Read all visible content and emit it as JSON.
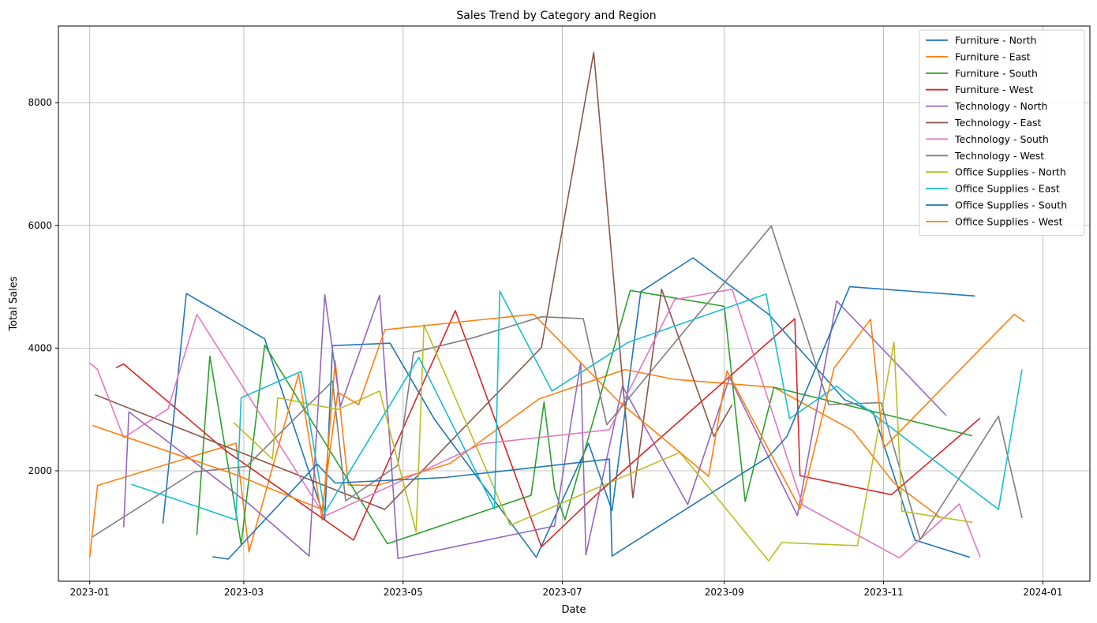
{
  "chart_data": {
    "type": "line",
    "title": "Sales Trend by Category and Region",
    "xlabel": "Date",
    "ylabel": "Total Sales",
    "xlim": [
      "2022-12-20",
      "2024-01-19"
    ],
    "ylim": [
      200,
      9250
    ],
    "x_ticks": [
      "2023-01",
      "2023-03",
      "2023-05",
      "2023-07",
      "2023-09",
      "2023-11",
      "2024-01"
    ],
    "y_ticks": [
      2000,
      4000,
      6000,
      8000
    ],
    "grid": true,
    "legend_position": "top-right",
    "series": [
      {
        "name": "Furniture - North",
        "color": "#1f77b4",
        "points": [
          [
            "2023-01-29",
            1140
          ],
          [
            "2023-02-07",
            4890
          ],
          [
            "2023-03-09",
            4150
          ],
          [
            "2023-04-01",
            1210
          ],
          [
            "2023-04-04",
            4040
          ],
          [
            "2023-04-26",
            4080
          ],
          [
            "2023-05-13",
            2840
          ],
          [
            "2023-06-21",
            590
          ],
          [
            "2023-07-11",
            2450
          ],
          [
            "2023-07-20",
            1350
          ],
          [
            "2023-07-31",
            4920
          ],
          [
            "2023-08-20",
            5470
          ],
          [
            "2023-09-18",
            4550
          ],
          [
            "2023-10-17",
            3160
          ],
          [
            "2023-10-28",
            2960
          ],
          [
            "2023-11-13",
            870
          ],
          [
            "2023-12-04",
            590
          ]
        ]
      },
      {
        "name": "Furniture - East",
        "color": "#ff7f0e",
        "points": [
          [
            "2023-01-01",
            590
          ],
          [
            "2023-01-04",
            1760
          ],
          [
            "2023-02-26",
            2450
          ],
          [
            "2023-03-03",
            680
          ],
          [
            "2023-03-22",
            3580
          ],
          [
            "2023-03-31",
            1200
          ],
          [
            "2023-04-05",
            3790
          ],
          [
            "2023-04-10",
            1770
          ],
          [
            "2023-04-21",
            1760
          ],
          [
            "2023-05-19",
            2120
          ],
          [
            "2023-06-22",
            3170
          ],
          [
            "2023-07-25",
            3650
          ],
          [
            "2023-08-13",
            3490
          ],
          [
            "2023-09-20",
            3360
          ],
          [
            "2023-10-20",
            2660
          ],
          [
            "2023-11-05",
            1800
          ],
          [
            "2023-11-23",
            1230
          ]
        ]
      },
      {
        "name": "Furniture - South",
        "color": "#2ca02c",
        "points": [
          [
            "2023-02-11",
            950
          ],
          [
            "2023-02-16",
            3870
          ],
          [
            "2023-02-28",
            800
          ],
          [
            "2023-03-09",
            4050
          ],
          [
            "2023-04-25",
            810
          ],
          [
            "2023-06-19",
            1600
          ],
          [
            "2023-06-24",
            3120
          ],
          [
            "2023-06-28",
            1700
          ],
          [
            "2023-07-02",
            1200
          ],
          [
            "2023-07-27",
            4940
          ],
          [
            "2023-09-01",
            4680
          ],
          [
            "2023-09-09",
            1500
          ],
          [
            "2023-09-20",
            3360
          ],
          [
            "2023-12-05",
            2570
          ]
        ]
      },
      {
        "name": "Furniture - West",
        "color": "#d62728",
        "points": [
          [
            "2023-01-11",
            3680
          ],
          [
            "2023-01-14",
            3740
          ],
          [
            "2023-02-22",
            2330
          ],
          [
            "2023-04-12",
            870
          ],
          [
            "2023-05-21",
            4610
          ],
          [
            "2023-06-23",
            760
          ],
          [
            "2023-07-14",
            1610
          ],
          [
            "2023-09-28",
            4480
          ],
          [
            "2023-09-30",
            1920
          ],
          [
            "2023-11-04",
            1610
          ],
          [
            "2023-12-08",
            2860
          ]
        ]
      },
      {
        "name": "Technology - North",
        "color": "#9467bd",
        "points": [
          [
            "2023-01-14",
            1080
          ],
          [
            "2023-01-16",
            2960
          ],
          [
            "2023-03-03",
            1460
          ],
          [
            "2023-03-26",
            610
          ],
          [
            "2023-04-01",
            4870
          ],
          [
            "2023-04-07",
            3050
          ],
          [
            "2023-04-22",
            4860
          ],
          [
            "2023-04-29",
            570
          ],
          [
            "2023-06-28",
            1100
          ],
          [
            "2023-07-08",
            3770
          ],
          [
            "2023-07-10",
            630
          ],
          [
            "2023-07-24",
            3380
          ],
          [
            "2023-08-18",
            1450
          ],
          [
            "2023-09-03",
            3520
          ],
          [
            "2023-09-29",
            1270
          ],
          [
            "2023-10-14",
            4770
          ],
          [
            "2023-11-25",
            2900
          ]
        ]
      },
      {
        "name": "Technology - East",
        "color": "#8c564b",
        "points": [
          [
            "2023-01-03",
            3240
          ],
          [
            "2023-04-24",
            1370
          ],
          [
            "2023-06-23",
            4010
          ],
          [
            "2023-07-13",
            8820
          ],
          [
            "2023-07-28",
            1560
          ],
          [
            "2023-08-08",
            4960
          ],
          [
            "2023-08-28",
            2560
          ],
          [
            "2023-09-04",
            3080
          ]
        ]
      },
      {
        "name": "Technology - South",
        "color": "#e377c2",
        "points": [
          [
            "2023-01-01",
            3760
          ],
          [
            "2023-01-04",
            3650
          ],
          [
            "2023-01-14",
            2540
          ],
          [
            "2023-01-31",
            3010
          ],
          [
            "2023-02-11",
            4550
          ],
          [
            "2023-04-01",
            1260
          ],
          [
            "2023-05-31",
            2440
          ],
          [
            "2023-07-19",
            2670
          ],
          [
            "2023-08-13",
            4790
          ],
          [
            "2023-09-04",
            4960
          ],
          [
            "2023-10-01",
            1440
          ],
          [
            "2023-11-07",
            580
          ],
          [
            "2023-11-30",
            1460
          ],
          [
            "2023-12-08",
            590
          ]
        ]
      },
      {
        "name": "Technology - West",
        "color": "#7f7f7f",
        "points": [
          [
            "2023-01-02",
            920
          ],
          [
            "2023-02-10",
            1980
          ],
          [
            "2023-03-02",
            2070
          ],
          [
            "2023-04-04",
            3460
          ],
          [
            "2023-04-09",
            1510
          ],
          [
            "2023-04-29",
            2090
          ],
          [
            "2023-05-05",
            3930
          ],
          [
            "2023-05-28",
            4170
          ],
          [
            "2023-06-23",
            4510
          ],
          [
            "2023-07-09",
            4480
          ],
          [
            "2023-07-18",
            2750
          ],
          [
            "2023-09-19",
            5990
          ],
          [
            "2023-10-11",
            3080
          ],
          [
            "2023-10-31",
            3110
          ],
          [
            "2023-11-15",
            880
          ],
          [
            "2023-12-15",
            2890
          ],
          [
            "2023-12-24",
            1230
          ]
        ]
      },
      {
        "name": "Office Supplies - North",
        "color": "#bcbd22",
        "points": [
          [
            "2023-02-25",
            2790
          ],
          [
            "2023-03-12",
            2190
          ],
          [
            "2023-03-14",
            3190
          ],
          [
            "2023-04-06",
            3000
          ],
          [
            "2023-04-22",
            3300
          ],
          [
            "2023-05-06",
            1000
          ],
          [
            "2023-05-09",
            4380
          ],
          [
            "2023-06-11",
            1110
          ],
          [
            "2023-08-15",
            2300
          ],
          [
            "2023-09-18",
            530
          ],
          [
            "2023-09-23",
            830
          ],
          [
            "2023-10-22",
            780
          ],
          [
            "2023-11-05",
            4100
          ],
          [
            "2023-11-08",
            1340
          ],
          [
            "2023-12-05",
            1160
          ]
        ]
      },
      {
        "name": "Office Supplies - East",
        "color": "#17becf",
        "points": [
          [
            "2023-01-17",
            1780
          ],
          [
            "2023-02-26",
            1200
          ],
          [
            "2023-02-28",
            3190
          ],
          [
            "2023-03-23",
            3620
          ],
          [
            "2023-04-01",
            1320
          ],
          [
            "2023-05-07",
            3850
          ],
          [
            "2023-06-05",
            1380
          ],
          [
            "2023-06-07",
            4930
          ],
          [
            "2023-06-27",
            3300
          ],
          [
            "2023-07-26",
            4090
          ],
          [
            "2023-09-17",
            4880
          ],
          [
            "2023-09-26",
            2850
          ],
          [
            "2023-10-14",
            3380
          ],
          [
            "2023-12-15",
            1370
          ],
          [
            "2023-12-24",
            3650
          ]
        ]
      },
      {
        "name": "Office Supplies - South",
        "color": "#1f77b4",
        "points": [
          [
            "2023-02-17",
            600
          ],
          [
            "2023-02-23",
            560
          ],
          [
            "2023-03-29",
            2110
          ],
          [
            "2023-04-05",
            1800
          ],
          [
            "2023-05-17",
            1890
          ],
          [
            "2023-07-19",
            2190
          ],
          [
            "2023-07-20",
            610
          ],
          [
            "2023-09-18",
            2230
          ],
          [
            "2023-09-25",
            2560
          ],
          [
            "2023-10-19",
            5000
          ],
          [
            "2023-12-06",
            4850
          ]
        ]
      },
      {
        "name": "Office Supplies - West",
        "color": "#ff7f0e",
        "points": [
          [
            "2023-01-02",
            2740
          ],
          [
            "2023-02-25",
            1950
          ],
          [
            "2023-03-31",
            1370
          ],
          [
            "2023-04-06",
            3280
          ],
          [
            "2023-04-14",
            3080
          ],
          [
            "2023-04-24",
            4300
          ],
          [
            "2023-06-20",
            4550
          ],
          [
            "2023-07-22",
            3150
          ],
          [
            "2023-08-26",
            1910
          ],
          [
            "2023-09-02",
            3630
          ],
          [
            "2023-09-30",
            1380
          ],
          [
            "2023-10-13",
            3670
          ],
          [
            "2023-10-27",
            4470
          ],
          [
            "2023-11-01",
            2370
          ],
          [
            "2023-12-21",
            4550
          ],
          [
            "2023-12-25",
            4430
          ]
        ]
      }
    ]
  }
}
